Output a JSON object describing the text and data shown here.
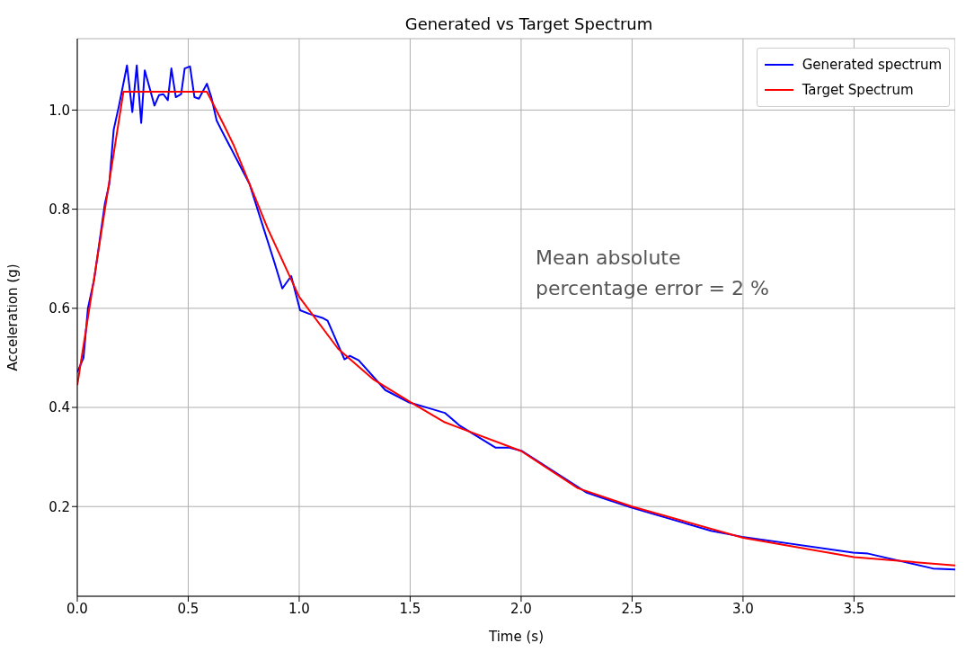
{
  "chart_data": {
    "type": "line",
    "title": "Generated vs Target Spectrum",
    "xlabel": "Time (s)",
    "ylabel": "Acceleration (g)",
    "annotations": [
      "Mean absolute percentage error = 2 %"
    ],
    "series": [
      {
        "name": "Generated spectrum",
        "color": "#0000ff",
        "x": [
          0,
          0.028,
          0.048,
          0.076,
          0.124,
          0.144,
          0.164,
          0.188,
          0.224,
          0.248,
          0.268,
          0.288,
          0.304,
          0.348,
          0.368,
          0.388,
          0.408,
          0.424,
          0.444,
          0.468,
          0.484,
          0.508,
          0.528,
          0.548,
          0.584,
          0.604,
          0.628,
          0.648,
          0.776,
          0.888,
          0.924,
          0.964,
          1.004,
          1.044,
          1.108,
          1.128,
          1.204,
          1.228,
          1.268,
          1.388,
          1.496,
          1.588,
          1.656,
          1.724,
          1.884,
          1.948,
          2.004,
          2.296,
          2.376,
          2.496,
          2.856,
          2.996,
          3.496,
          3.564,
          3.856,
          3.956
        ],
        "values": [
          0.471,
          0.5,
          0.6,
          0.658,
          0.81,
          0.85,
          0.96,
          1.009,
          1.09,
          0.996,
          1.09,
          0.974,
          1.08,
          1.009,
          1.03,
          1.032,
          1.02,
          1.084,
          1.026,
          1.032,
          1.084,
          1.088,
          1.026,
          1.023,
          1.053,
          1.026,
          0.979,
          0.961,
          0.851,
          0.693,
          0.64,
          0.665,
          0.596,
          0.589,
          0.58,
          0.575,
          0.497,
          0.504,
          0.495,
          0.435,
          0.41,
          0.398,
          0.389,
          0.363,
          0.319,
          0.319,
          0.312,
          0.228,
          0.216,
          0.198,
          0.151,
          0.139,
          0.107,
          0.105,
          0.075,
          0.073
        ]
      },
      {
        "name": "Target Spectrum",
        "color": "#ff0000",
        "x": [
          0,
          0.208,
          0.584,
          0.656,
          0.704,
          0.776,
          0.856,
          1.0,
          1.176,
          1.336,
          1.496,
          1.656,
          2.0,
          2.256,
          2.5,
          3.0,
          3.5,
          3.956
        ],
        "values": [
          0.445,
          1.037,
          1.037,
          0.974,
          0.93,
          0.851,
          0.763,
          0.623,
          0.518,
          0.456,
          0.412,
          0.37,
          0.312,
          0.237,
          0.2,
          0.137,
          0.098,
          0.081
        ]
      }
    ],
    "xlim": [
      0,
      3.956
    ],
    "xticks": [
      {
        "value": 0,
        "label": "0.0"
      },
      {
        "value": 0.5,
        "label": "0.5"
      },
      {
        "value": 1,
        "label": "1.0"
      },
      {
        "value": 1.5,
        "label": "1.5"
      },
      {
        "value": 2,
        "label": "2.0"
      },
      {
        "value": 2.5,
        "label": "2.5"
      },
      {
        "value": 3,
        "label": "3.0"
      },
      {
        "value": 3.5,
        "label": "3.5"
      }
    ],
    "ylim": [
      0.019,
      1.144
    ],
    "yticks": [
      0.2,
      0.4,
      0.6,
      0.8,
      {
        "value": 1,
        "label": "1.0"
      }
    ],
    "grid": true,
    "legend": "top right",
    "line_style": "solid",
    "marker": "none"
  }
}
